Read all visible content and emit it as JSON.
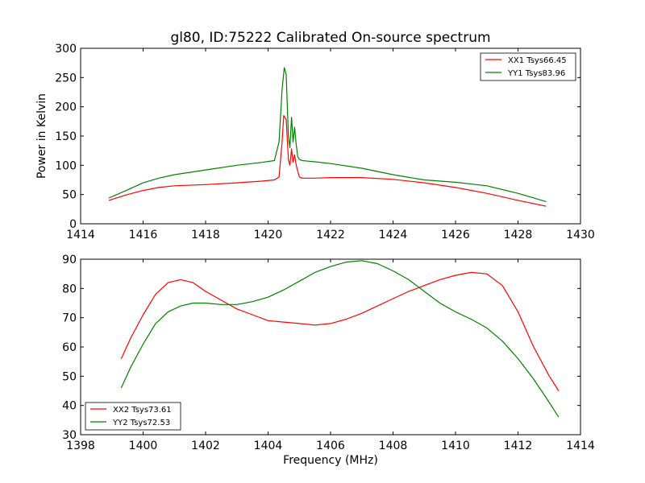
{
  "figure": {
    "title": "gl80, ID:75222 Calibrated On-source spectrum",
    "xlabel": "Frequency (MHz)"
  },
  "chart_data": [
    {
      "type": "line",
      "title": "gl80, ID:75222 Calibrated On-source spectrum",
      "xlabel": "",
      "ylabel": "Power in Kelvin",
      "xlim": [
        1414,
        1430
      ],
      "ylim": [
        0,
        300
      ],
      "xticks": [
        1414,
        1416,
        1418,
        1420,
        1422,
        1424,
        1426,
        1428,
        1430
      ],
      "yticks": [
        0,
        50,
        100,
        150,
        200,
        250,
        300
      ],
      "legend_position": "top-right",
      "grid": false,
      "series": [
        {
          "name": "XX1 Tsys66.45",
          "color": "#ff0000",
          "x": [
            1414.9,
            1415.5,
            1416.0,
            1416.5,
            1417.0,
            1418.0,
            1419.0,
            1419.8,
            1420.2,
            1420.35,
            1420.45,
            1420.5,
            1420.58,
            1420.65,
            1420.7,
            1420.75,
            1420.8,
            1420.85,
            1420.9,
            1420.95,
            1421.0,
            1421.1,
            1421.5,
            1422.0,
            1423.0,
            1424.0,
            1425.0,
            1426.0,
            1427.0,
            1428.0,
            1428.9
          ],
          "values": [
            40,
            50,
            57,
            62,
            65,
            67,
            70,
            73,
            75,
            80,
            140,
            185,
            178,
            110,
            100,
            128,
            105,
            118,
            100,
            90,
            80,
            78,
            78,
            79,
            79,
            76,
            70,
            62,
            52,
            40,
            30
          ]
        },
        {
          "name": "YY1 Tsys83.96",
          "color": "#008000",
          "x": [
            1414.9,
            1415.5,
            1416.0,
            1416.5,
            1417.0,
            1418.0,
            1419.0,
            1419.8,
            1420.2,
            1420.35,
            1420.45,
            1420.52,
            1420.58,
            1420.65,
            1420.7,
            1420.75,
            1420.8,
            1420.85,
            1420.9,
            1420.95,
            1421.0,
            1421.1,
            1421.5,
            1422.0,
            1423.0,
            1424.0,
            1425.0,
            1426.0,
            1427.0,
            1428.0,
            1428.9
          ],
          "values": [
            44,
            58,
            70,
            78,
            84,
            92,
            100,
            105,
            108,
            140,
            230,
            267,
            255,
            150,
            130,
            182,
            140,
            165,
            135,
            115,
            110,
            108,
            106,
            103,
            95,
            84,
            75,
            71,
            65,
            52,
            38
          ]
        }
      ]
    },
    {
      "type": "line",
      "title": "",
      "xlabel": "Frequency (MHz)",
      "ylabel": "",
      "xlim": [
        1398,
        1414
      ],
      "ylim": [
        30,
        90
      ],
      "xticks": [
        1398,
        1400,
        1402,
        1404,
        1406,
        1408,
        1410,
        1412,
        1414
      ],
      "yticks": [
        30,
        40,
        50,
        60,
        70,
        80,
        90
      ],
      "legend_position": "bottom-left",
      "grid": false,
      "series": [
        {
          "name": "XX2 Tsys73.61",
          "color": "#ff0000",
          "x": [
            1399.3,
            1399.6,
            1400.0,
            1400.4,
            1400.8,
            1401.2,
            1401.6,
            1402.0,
            1402.5,
            1403.0,
            1403.5,
            1404.0,
            1404.5,
            1405.0,
            1405.5,
            1406.0,
            1406.5,
            1407.0,
            1407.5,
            1408.0,
            1408.5,
            1409.0,
            1409.5,
            1410.0,
            1410.5,
            1411.0,
            1411.5,
            1412.0,
            1412.5,
            1413.0,
            1413.3
          ],
          "values": [
            56,
            63,
            71,
            78,
            82,
            83,
            82,
            79,
            76,
            73,
            71,
            69,
            68.5,
            68,
            67.5,
            68,
            69.5,
            71.5,
            74,
            76.5,
            79,
            81,
            83,
            84.5,
            85.5,
            85,
            81,
            72,
            60,
            50,
            45
          ]
        },
        {
          "name": "YY2 Tsys72.53",
          "color": "#008000",
          "x": [
            1399.3,
            1399.6,
            1400.0,
            1400.4,
            1400.8,
            1401.2,
            1401.6,
            1402.0,
            1402.5,
            1403.0,
            1403.5,
            1404.0,
            1404.5,
            1405.0,
            1405.5,
            1406.0,
            1406.5,
            1407.0,
            1407.5,
            1408.0,
            1408.5,
            1409.0,
            1409.5,
            1410.0,
            1410.5,
            1411.0,
            1411.5,
            1412.0,
            1412.5,
            1413.0,
            1413.3
          ],
          "values": [
            46,
            53,
            61,
            68,
            72,
            74,
            75,
            75,
            74.5,
            74.5,
            75.5,
            77,
            79.5,
            82.5,
            85.5,
            87.5,
            89,
            89.5,
            88.5,
            86,
            83,
            79,
            75,
            72,
            69.5,
            66.5,
            62,
            56,
            49,
            41,
            36
          ]
        }
      ]
    }
  ]
}
